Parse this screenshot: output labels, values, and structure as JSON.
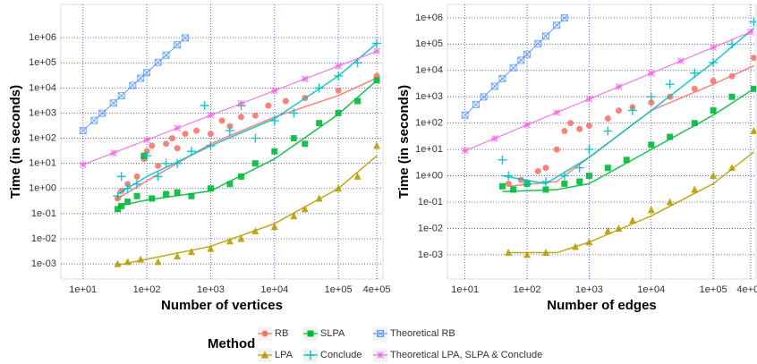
{
  "chart_data": [
    {
      "type": "scatter",
      "xlabel": "Number of vertices",
      "ylabel": "Time (in seconds)",
      "log_x": true,
      "log_y": true,
      "grid": true,
      "xlim": [
        4.5,
        500000
      ],
      "ylim": [
        0.00025,
        21000000
      ],
      "xticks": [
        {
          "value": 10,
          "label": "1e+01"
        },
        {
          "value": 100,
          "label": "1e+02"
        },
        {
          "value": 1000,
          "label": "1e+03"
        },
        {
          "value": 10000,
          "label": "1e+04"
        },
        {
          "value": 100000,
          "label": "1e+05"
        },
        {
          "value": 400000,
          "label": "4e+05"
        }
      ],
      "yticks": [
        {
          "value": 0.001,
          "label": "1e-03"
        },
        {
          "value": 0.01,
          "label": "1e-02"
        },
        {
          "value": 0.1,
          "label": "1e-01"
        },
        {
          "value": 1,
          "label": "1e+00"
        },
        {
          "value": 10,
          "label": "1e+01"
        },
        {
          "value": 100,
          "label": "1e+02"
        },
        {
          "value": 1000,
          "label": "1e+03"
        },
        {
          "value": 10000,
          "label": "1e+04"
        },
        {
          "value": 100000,
          "label": "1e+05"
        },
        {
          "value": 1000000,
          "label": "1e+06"
        }
      ],
      "legend_title": "Method",
      "series": [
        {
          "name": "RB",
          "color": "#f8766d",
          "marker": "circle",
          "x": [
            35,
            40,
            50,
            70,
            90,
            100,
            120,
            150,
            200,
            250,
            300,
            400,
            600,
            1000,
            1500,
            2000,
            3000,
            5000,
            8000,
            15000,
            30000,
            100000,
            400000
          ],
          "values": [
            0.4,
            0.8,
            1.5,
            3,
            15,
            30,
            50,
            8,
            60,
            100,
            40,
            150,
            200,
            150,
            500,
            300,
            700,
            800,
            2000,
            3000,
            4000,
            8000,
            30000
          ],
          "trend": {
            "x": [
              35,
              100,
              1000,
              10000,
              100000,
              400000
            ],
            "values": [
              0.4,
              2,
              60,
              700,
              5000,
              25000
            ]
          }
        },
        {
          "name": "LPA",
          "color": "#b79f00",
          "marker": "triangle",
          "x": [
            35,
            50,
            80,
            150,
            300,
            500,
            1000,
            2000,
            3000,
            5000,
            10000,
            20000,
            30000,
            50000,
            100000,
            200000,
            400000
          ],
          "values": [
            0.001,
            0.0012,
            0.0015,
            0.0012,
            0.002,
            0.003,
            0.004,
            0.008,
            0.01,
            0.02,
            0.03,
            0.08,
            0.15,
            0.4,
            1,
            3,
            50
          ],
          "trend": {
            "x": [
              35,
              1000,
              10000,
              100000,
              400000
            ],
            "values": [
              0.0009,
              0.005,
              0.04,
              1,
              20
            ]
          }
        },
        {
          "name": "SLPA",
          "color": "#00ba38",
          "marker": "square",
          "x": [
            35,
            40,
            50,
            70,
            90,
            120,
            200,
            300,
            500,
            1000,
            2000,
            3000,
            5000,
            10000,
            20000,
            30000,
            50000,
            100000,
            200000,
            400000
          ],
          "values": [
            0.15,
            0.2,
            0.3,
            0.5,
            20,
            0.4,
            0.6,
            0.7,
            0.5,
            1,
            1.5,
            3,
            10,
            30,
            100,
            60,
            400,
            1000,
            3000,
            20000
          ],
          "trend": {
            "x": [
              35,
              100,
              1000,
              10000,
              100000,
              400000
            ],
            "values": [
              0.2,
              0.35,
              0.8,
              15,
              900,
              20000
            ]
          }
        },
        {
          "name": "Conclude",
          "color": "#00bfc4",
          "marker": "plus",
          "x": [
            35,
            40,
            50,
            70,
            100,
            150,
            200,
            300,
            500,
            800,
            1000,
            2000,
            3000,
            5000,
            10000,
            20000,
            50000,
            100000,
            200000,
            400000
          ],
          "values": [
            0.5,
            3,
            1,
            1.5,
            20,
            3,
            10,
            10,
            30,
            2000,
            50,
            200,
            2000,
            100,
            500,
            1000,
            10000,
            30000,
            100000,
            600000
          ],
          "trend": {
            "x": [
              35,
              100,
              1000,
              10000,
              100000,
              400000
            ],
            "values": [
              0.6,
              3,
              50,
              600,
              30000,
              600000
            ]
          }
        },
        {
          "name": "Theoretical RB",
          "color": "#619cff",
          "marker": "boxx",
          "line": true,
          "x": [
            10,
            15,
            20,
            30,
            40,
            60,
            80,
            100,
            150,
            200,
            300,
            400
          ],
          "values": [
            200,
            510,
            990,
            2500,
            4900,
            12600,
            24400,
            40800,
            104000,
            201000,
            520000,
            980000
          ]
        },
        {
          "name": "Theoretical LPA, SLPA & Conclude",
          "color": "#f564e3",
          "marker": "star",
          "line": true,
          "x": [
            10,
            30,
            100,
            300,
            1000,
            3000,
            10000,
            30000,
            100000,
            400000
          ],
          "values": [
            9,
            26,
            86,
            252,
            820,
            2400,
            7800,
            23000,
            75000,
            290000
          ]
        }
      ]
    },
    {
      "type": "scatter",
      "xlabel": "Number of edges",
      "ylabel": "Time (in seconds)",
      "log_x": true,
      "log_y": true,
      "grid": true,
      "xlim": [
        5.2,
        490000
      ],
      "ylim": [
        0.00012,
        3200000
      ],
      "xticks": [
        {
          "value": 10,
          "label": "1e+01"
        },
        {
          "value": 100,
          "label": "1e+02"
        },
        {
          "value": 1000,
          "label": "1e+03"
        },
        {
          "value": 10000,
          "label": "1e+04"
        },
        {
          "value": 100000,
          "label": "1e+05"
        },
        {
          "value": 400000,
          "label": "4e+05"
        }
      ],
      "yticks": [
        {
          "value": 0.001,
          "label": "1e-03"
        },
        {
          "value": 0.01,
          "label": "1e-02"
        },
        {
          "value": 0.1,
          "label": "1e-01"
        },
        {
          "value": 1,
          "label": "1e+00"
        },
        {
          "value": 10,
          "label": "1e+01"
        },
        {
          "value": 100,
          "label": "1e+02"
        },
        {
          "value": 1000,
          "label": "1e+03"
        },
        {
          "value": 10000,
          "label": "1e+04"
        },
        {
          "value": 100000,
          "label": "1e+05"
        },
        {
          "value": 1000000,
          "label": "1e+06"
        }
      ],
      "series": [
        {
          "color": "#f8766d",
          "marker": "circle",
          "x": [
            50,
            80,
            150,
            200,
            300,
            400,
            500,
            700,
            1000,
            2000,
            3000,
            5000,
            10000,
            20000,
            50000,
            100000,
            200000,
            450000
          ],
          "values": [
            0.5,
            0.7,
            1.5,
            2,
            10,
            50,
            100,
            60,
            80,
            150,
            300,
            400,
            600,
            1000,
            2000,
            4000,
            6000,
            30000
          ],
          "trend": {
            "x": [
              50,
              300,
              1000,
              10000,
              100000,
              450000
            ],
            "values": [
              0.4,
              0.6,
              5,
              300,
              3000,
              15000
            ]
          }
        },
        {
          "color": "#b79f00",
          "marker": "triangle",
          "x": [
            50,
            100,
            200,
            600,
            1000,
            2000,
            3000,
            5000,
            10000,
            20000,
            50000,
            100000,
            200000,
            450000
          ],
          "values": [
            0.0012,
            0.001,
            0.0012,
            0.002,
            0.003,
            0.008,
            0.01,
            0.02,
            0.05,
            0.1,
            0.3,
            1,
            2,
            50
          ],
          "trend": {
            "x": [
              50,
              300,
              1000,
              10000,
              100000,
              450000
            ],
            "values": [
              0.0012,
              0.0012,
              0.003,
              0.03,
              0.5,
              8
            ]
          }
        },
        {
          "color": "#00ba38",
          "marker": "square",
          "x": [
            40,
            60,
            100,
            200,
            400,
            700,
            1000,
            2000,
            4000,
            10000,
            20000,
            50000,
            100000,
            200000,
            450000
          ],
          "values": [
            0.4,
            0.3,
            0.5,
            0.3,
            0.5,
            0.6,
            1,
            2,
            4,
            15,
            30,
            100,
            300,
            1000,
            2000
          ],
          "trend": {
            "x": [
              40,
              300,
              1000,
              10000,
              100000,
              450000
            ],
            "values": [
              0.25,
              0.3,
              0.5,
              10,
              200,
              2000
            ]
          }
        },
        {
          "color": "#00bfc4",
          "marker": "plus",
          "x": [
            40,
            50,
            100,
            200,
            400,
            700,
            1000,
            2000,
            5000,
            10000,
            20000,
            50000,
            100000,
            200000,
            450000
          ],
          "values": [
            4,
            1,
            0.5,
            0.6,
            1,
            2,
            10,
            50,
            300,
            1000,
            3000,
            8000,
            20000,
            100000,
            700000
          ],
          "trend": {
            "x": [
              40,
              200,
              1000,
              10000,
              100000,
              450000
            ],
            "values": [
              1,
              0.5,
              5,
              300,
              20000,
              400000
            ]
          }
        },
        {
          "color": "#619cff",
          "marker": "boxx",
          "line": true,
          "x": [
            10,
            15,
            20,
            30,
            40,
            60,
            80,
            100,
            150,
            200,
            300,
            400
          ],
          "values": [
            200,
            510,
            990,
            2500,
            4900,
            12600,
            24400,
            40800,
            104000,
            201000,
            520000,
            980000
          ]
        },
        {
          "color": "#f564e3",
          "marker": "star",
          "line": true,
          "x": [
            10,
            30,
            100,
            300,
            1000,
            3000,
            10000,
            30000,
            100000,
            400000
          ],
          "values": [
            9,
            26,
            86,
            252,
            820,
            2400,
            7800,
            23000,
            75000,
            290000
          ]
        }
      ]
    }
  ]
}
